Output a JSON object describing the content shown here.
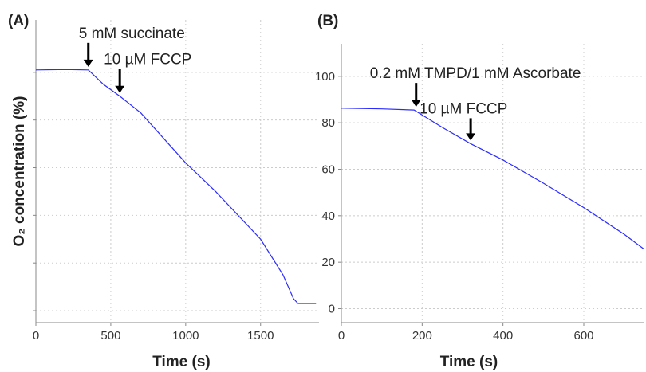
{
  "chart_data": [
    {
      "type": "line",
      "panel_label": "(A)",
      "xlabel": "Time (s)",
      "ylabel": "O₂ concentration (%)",
      "x": [
        0,
        200,
        350,
        450,
        560,
        700,
        1000,
        1200,
        1500,
        1650,
        1720,
        1750,
        1870
      ],
      "series": [
        {
          "color": "#2b2bff",
          "values": [
            101,
            101.2,
            101,
            95,
            90,
            83,
            62,
            50,
            30,
            15,
            5,
            3,
            3
          ]
        }
      ],
      "xlim": [
        0,
        1890
      ],
      "ylim": [
        -5,
        122
      ],
      "xticks": [
        0,
        500,
        1000,
        1500
      ],
      "yticks": [
        0,
        20,
        40,
        60,
        80,
        100
      ],
      "ytick_labels": false,
      "grid": true,
      "annotations": [
        {
          "text": "5 mM succinate",
          "x": 350,
          "y": 101
        },
        {
          "text": "10 µM FCCP",
          "x": 560,
          "y": 90
        }
      ]
    },
    {
      "type": "line",
      "panel_label": "(B)",
      "xlabel": "Time (s)",
      "x": [
        0,
        100,
        180,
        250,
        320,
        400,
        500,
        600,
        700,
        750
      ],
      "series": [
        {
          "color": "#2b2bff",
          "values": [
            86.3,
            86,
            85.5,
            78,
            71,
            64,
            54,
            43.5,
            32,
            25.5
          ]
        }
      ],
      "xlim": [
        0,
        750
      ],
      "ylim": [
        -6,
        114
      ],
      "xticks": [
        0,
        200,
        400,
        600
      ],
      "yticks": [
        0,
        20,
        40,
        60,
        80,
        100
      ],
      "ytick_labels": true,
      "grid": true,
      "annotations": [
        {
          "text": "0.2 mM TMPD/1 mM Ascorbate",
          "x": 185,
          "y": 85.5
        },
        {
          "text": "10 µM FCCP",
          "x": 320,
          "y": 71
        }
      ]
    }
  ]
}
